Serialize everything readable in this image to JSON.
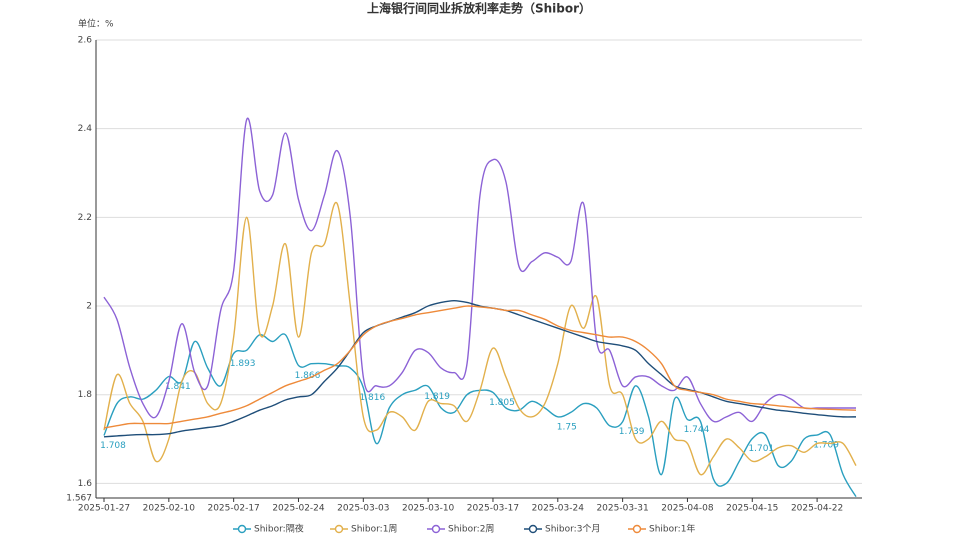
{
  "chart_data": {
    "type": "line",
    "title": "上海银行间同业拆放利率走势（Shibor）",
    "y_unit_label": "单位：%",
    "categories": [
      "2025-01-27",
      null,
      null,
      null,
      null,
      "2025-02-10",
      null,
      null,
      null,
      null,
      "2025-02-17",
      null,
      null,
      null,
      null,
      "2025-02-24",
      null,
      null,
      null,
      null,
      "2025-03-03",
      null,
      null,
      null,
      null,
      "2025-03-10",
      null,
      null,
      null,
      null,
      "2025-03-17",
      null,
      null,
      null,
      null,
      "2025-03-24",
      null,
      null,
      null,
      null,
      "2025-03-31",
      null,
      null,
      null,
      null,
      "2025-04-08",
      null,
      null,
      null,
      null,
      "2025-04-15",
      null,
      null,
      null,
      null,
      "2025-04-22",
      null,
      null,
      null
    ],
    "ylim": [
      1.567,
      2.6
    ],
    "yticks": [
      1.567,
      1.6,
      1.8,
      2,
      2.2,
      2.4,
      2.6
    ],
    "grid": true,
    "legend": "bottom",
    "series": [
      {
        "name": "Shibor:隔夜",
        "color": "#2a9fbf",
        "values": [
          1.708,
          1.78,
          1.795,
          1.79,
          1.81,
          1.841,
          1.83,
          1.92,
          1.86,
          1.82,
          1.893,
          1.9,
          1.935,
          1.92,
          1.935,
          1.866,
          1.87,
          1.87,
          1.865,
          1.86,
          1.816,
          1.69,
          1.77,
          1.8,
          1.81,
          1.819,
          1.77,
          1.76,
          1.8,
          1.81,
          1.805,
          1.77,
          1.765,
          1.785,
          1.77,
          1.75,
          1.76,
          1.78,
          1.77,
          1.73,
          1.739,
          1.82,
          1.75,
          1.62,
          1.79,
          1.744,
          1.74,
          1.61,
          1.6,
          1.65,
          1.701,
          1.71,
          1.64,
          1.65,
          1.7,
          1.709,
          1.71,
          1.62,
          1.57
        ],
        "value_labels": [
          "1.708",
          null,
          null,
          null,
          null,
          "1.841",
          null,
          null,
          null,
          null,
          "1.893",
          null,
          null,
          null,
          null,
          "1.866",
          null,
          null,
          null,
          null,
          "1.816",
          null,
          null,
          null,
          null,
          "1.819",
          null,
          null,
          null,
          null,
          "1.805",
          null,
          null,
          null,
          null,
          "1.75",
          null,
          null,
          null,
          null,
          "1.739",
          null,
          null,
          null,
          null,
          "1.744",
          null,
          null,
          null,
          null,
          "1.701",
          null,
          null,
          null,
          null,
          "1.709",
          null,
          null,
          null
        ]
      },
      {
        "name": "Shibor:1周",
        "color": "#e2b04c",
        "values": [
          1.72,
          1.845,
          1.78,
          1.74,
          1.65,
          1.7,
          1.83,
          1.85,
          1.78,
          1.78,
          1.93,
          2.2,
          1.94,
          2.0,
          2.14,
          1.93,
          2.12,
          2.14,
          2.23,
          2.0,
          1.75,
          1.72,
          1.76,
          1.75,
          1.72,
          1.785,
          1.78,
          1.775,
          1.74,
          1.81,
          1.905,
          1.84,
          1.77,
          1.75,
          1.78,
          1.87,
          2.0,
          1.95,
          2.02,
          1.82,
          1.8,
          1.7,
          1.7,
          1.74,
          1.7,
          1.69,
          1.62,
          1.66,
          1.7,
          1.68,
          1.65,
          1.66,
          1.68,
          1.685,
          1.67,
          1.69,
          1.69,
          1.69,
          1.64
        ]
      },
      {
        "name": "Shibor:2周",
        "color": "#8c62d6",
        "values": [
          2.02,
          1.97,
          1.86,
          1.78,
          1.75,
          1.83,
          1.96,
          1.85,
          1.82,
          1.99,
          2.08,
          2.42,
          2.26,
          2.25,
          2.39,
          2.24,
          2.17,
          2.25,
          2.35,
          2.2,
          1.84,
          1.82,
          1.82,
          1.85,
          1.9,
          1.895,
          1.86,
          1.85,
          1.87,
          2.25,
          2.33,
          2.28,
          2.09,
          2.1,
          2.12,
          2.11,
          2.1,
          2.23,
          1.92,
          1.9,
          1.82,
          1.84,
          1.84,
          1.82,
          1.81,
          1.84,
          1.78,
          1.74,
          1.75,
          1.76,
          1.74,
          1.78,
          1.8,
          1.79,
          1.77,
          1.77,
          1.77,
          1.77,
          1.77
        ]
      },
      {
        "name": "Shibor:3个月",
        "color": "#1f4e79",
        "values": [
          1.705,
          1.707,
          1.709,
          1.71,
          1.71,
          1.712,
          1.718,
          1.722,
          1.726,
          1.73,
          1.74,
          1.752,
          1.765,
          1.775,
          1.788,
          1.795,
          1.8,
          1.83,
          1.86,
          1.9,
          1.94,
          1.955,
          1.965,
          1.975,
          1.985,
          2.0,
          2.008,
          2.012,
          2.008,
          2.0,
          1.995,
          1.99,
          1.98,
          1.97,
          1.96,
          1.95,
          1.94,
          1.93,
          1.92,
          1.915,
          1.91,
          1.9,
          1.87,
          1.845,
          1.82,
          1.812,
          1.805,
          1.795,
          1.785,
          1.78,
          1.775,
          1.77,
          1.765,
          1.762,
          1.758,
          1.755,
          1.752,
          1.75,
          1.75
        ]
      },
      {
        "name": "Shibor:1年",
        "color": "#ee8a3a",
        "values": [
          1.725,
          1.73,
          1.735,
          1.735,
          1.735,
          1.735,
          1.74,
          1.745,
          1.75,
          1.758,
          1.765,
          1.775,
          1.79,
          1.805,
          1.82,
          1.83,
          1.84,
          1.855,
          1.87,
          1.9,
          1.935,
          1.955,
          1.965,
          1.972,
          1.98,
          1.985,
          1.99,
          1.995,
          2.0,
          1.998,
          1.995,
          1.99,
          1.99,
          1.98,
          1.97,
          1.955,
          1.945,
          1.94,
          1.935,
          1.93,
          1.93,
          1.92,
          1.9,
          1.87,
          1.82,
          1.81,
          1.805,
          1.8,
          1.79,
          1.785,
          1.78,
          1.778,
          1.775,
          1.772,
          1.77,
          1.768,
          1.767,
          1.766,
          1.765
        ]
      }
    ]
  }
}
